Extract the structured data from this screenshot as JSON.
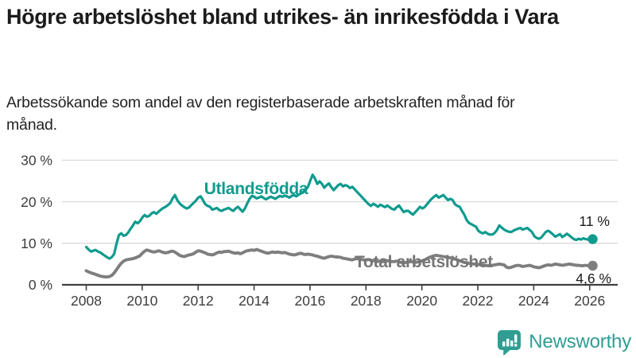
{
  "header": {
    "title": "Högre arbetslöshet bland utrikes- än inrikesfödda i Vara",
    "subtitle": "Arbetssökande som andel av den registerbaserade arbetskraften månad för månad."
  },
  "chart_data": {
    "type": "line",
    "frequency": "monthly",
    "x_start": "2008-01",
    "x_end": "2026-02",
    "x_tick_labels": [
      "2008",
      "2010",
      "2012",
      "2014",
      "2016",
      "2018",
      "2020",
      "2022",
      "2024",
      "2026"
    ],
    "y_tick_labels": [
      "0 %",
      "10 %",
      "20 %",
      "30 %"
    ],
    "y_tick_values": [
      0,
      10,
      20,
      30
    ],
    "ylim": [
      0,
      32
    ],
    "unit": "%",
    "grid": "horizontal",
    "legend_position": "inline-labels",
    "colors": {
      "accent_teal": "#0f9b8e",
      "neutral_gray": "#7e7e7e",
      "axis": "#404040",
      "gridline": "#dadada"
    },
    "series": [
      {
        "name": "Utlandsfödda",
        "color": "#0f9b8e",
        "end_label": "11 %",
        "end_value": 11,
        "values": [
          9.1,
          8.5,
          8.0,
          8.2,
          8.4,
          8.0,
          7.8,
          7.4,
          7.0,
          6.6,
          6.3,
          6.7,
          7.5,
          10.0,
          12.0,
          12.4,
          11.8,
          12.0,
          12.6,
          13.5,
          14.3,
          15.2,
          14.8,
          15.3,
          16.2,
          16.8,
          16.4,
          16.6,
          17.2,
          17.5,
          17.1,
          17.6,
          18.1,
          18.5,
          18.8,
          19.2,
          19.7,
          20.8,
          21.6,
          20.4,
          19.6,
          19.1,
          18.7,
          18.4,
          18.6,
          19.2,
          19.7,
          20.3,
          21.0,
          21.3,
          20.4,
          19.4,
          19.0,
          18.8,
          18.1,
          18.3,
          18.5,
          18.0,
          17.8,
          18.1,
          18.3,
          18.5,
          18.1,
          17.8,
          18.4,
          18.8,
          18.2,
          17.6,
          18.4,
          19.6,
          20.7,
          21.4,
          21.2,
          20.8,
          21.0,
          21.3,
          20.9,
          20.6,
          20.9,
          21.2,
          21.0,
          20.7,
          21.1,
          21.4,
          21.2,
          21.5,
          21.3,
          21.0,
          21.4,
          21.6,
          21.3,
          21.7,
          22.0,
          22.4,
          22.9,
          23.6,
          25.1,
          26.5,
          25.6,
          24.3,
          24.9,
          24.3,
          23.4,
          24.0,
          24.4,
          23.5,
          22.8,
          23.4,
          24.0,
          24.3,
          23.7,
          24.0,
          23.8,
          23.3,
          23.6,
          23.0,
          22.4,
          21.8,
          21.2,
          20.6,
          20.0,
          19.4,
          19.0,
          19.5,
          19.2,
          18.8,
          19.3,
          19.0,
          18.7,
          19.1,
          18.7,
          18.3,
          18.1,
          18.7,
          19.1,
          18.3,
          17.5,
          17.8,
          17.8,
          17.3,
          16.9,
          17.5,
          18.1,
          18.8,
          18.4,
          18.7,
          19.4,
          20.1,
          20.7,
          21.2,
          21.6,
          21.0,
          21.3,
          21.6,
          21.0,
          20.4,
          20.7,
          20.4,
          19.4,
          19.0,
          18.8,
          17.8,
          16.9,
          15.6,
          14.9,
          14.6,
          14.3,
          14.0,
          13.0,
          12.6,
          12.4,
          12.7,
          12.3,
          12.1,
          12.1,
          12.5,
          13.2,
          14.3,
          13.8,
          13.3,
          13.0,
          12.8,
          12.7,
          13.0,
          13.3,
          13.5,
          13.7,
          13.3,
          13.5,
          13.7,
          13.2,
          12.7,
          11.7,
          11.3,
          11.1,
          11.4,
          12.1,
          12.8,
          13.0,
          12.6,
          12.1,
          11.6,
          11.9,
          12.2,
          11.5,
          11.9,
          12.3,
          11.9,
          11.4,
          11.0,
          10.8,
          11.1,
          10.9,
          11.2,
          11.0,
          10.9,
          11.0,
          11.0
        ]
      },
      {
        "name": "Total arbetslöshet",
        "color": "#7e7e7e",
        "end_label": "4,6 %",
        "end_value": 4.6,
        "values": [
          3.4,
          3.1,
          2.9,
          2.7,
          2.5,
          2.3,
          2.1,
          2.0,
          1.9,
          1.9,
          2.0,
          2.3,
          2.9,
          3.7,
          4.5,
          5.2,
          5.7,
          6.0,
          6.1,
          6.2,
          6.3,
          6.5,
          6.7,
          7.0,
          7.6,
          8.1,
          8.4,
          8.2,
          8.0,
          7.9,
          8.0,
          8.2,
          8.0,
          7.8,
          7.7,
          7.8,
          8.0,
          8.1,
          7.9,
          7.5,
          7.1,
          6.9,
          6.8,
          7.0,
          7.2,
          7.3,
          7.5,
          7.9,
          8.2,
          8.1,
          7.9,
          7.7,
          7.4,
          7.3,
          7.2,
          7.4,
          7.7,
          7.9,
          7.8,
          8.0,
          8.0,
          8.1,
          7.9,
          7.7,
          7.6,
          7.7,
          7.5,
          7.7,
          8.0,
          8.2,
          8.3,
          8.4,
          8.3,
          8.5,
          8.3,
          8.1,
          7.9,
          7.7,
          7.6,
          7.8,
          7.9,
          7.8,
          7.9,
          7.8,
          7.7,
          7.8,
          7.6,
          7.4,
          7.3,
          7.2,
          7.3,
          7.5,
          7.6,
          7.4,
          7.3,
          7.4,
          7.3,
          7.2,
          7.0,
          6.9,
          6.7,
          6.5,
          6.4,
          6.6,
          6.8,
          6.9,
          6.8,
          6.7,
          6.7,
          6.6,
          6.4,
          6.3,
          6.2,
          6.1,
          6.0,
          6.2,
          6.3,
          6.2,
          6.1,
          6.0,
          6.0,
          6.1,
          5.9,
          5.8,
          5.7,
          5.6,
          5.7,
          5.8,
          5.9,
          5.8,
          5.7,
          5.6,
          5.6,
          5.7,
          5.5,
          5.4,
          5.3,
          5.4,
          5.5,
          5.6,
          5.5,
          5.4,
          5.5,
          5.6,
          5.8,
          6.0,
          6.3,
          6.6,
          6.8,
          7.0,
          7.1,
          7.0,
          6.9,
          6.8,
          6.7,
          6.6,
          6.5,
          6.4,
          6.2,
          6.0,
          5.8,
          5.6,
          5.4,
          5.3,
          5.2,
          5.1,
          5.0,
          5.0,
          4.9,
          4.8,
          4.8,
          4.7,
          4.6,
          4.6,
          4.7,
          4.8,
          4.9,
          5.0,
          4.9,
          4.8,
          4.3,
          4.1,
          4.2,
          4.4,
          4.6,
          4.7,
          4.6,
          4.4,
          4.5,
          4.6,
          4.7,
          4.5,
          4.3,
          4.2,
          4.1,
          4.3,
          4.5,
          4.7,
          4.8,
          4.7,
          4.8,
          5.0,
          4.9,
          4.8,
          4.7,
          4.8,
          4.9,
          5.0,
          4.9,
          4.8,
          4.7,
          4.7,
          4.6,
          4.6,
          4.7,
          4.6,
          4.6,
          4.6
        ]
      }
    ]
  },
  "footer": {
    "brand": "Newsworthy",
    "logo_icon": "bar-chart-speech-bubble-icon",
    "brand_color": "#2f9e92"
  }
}
